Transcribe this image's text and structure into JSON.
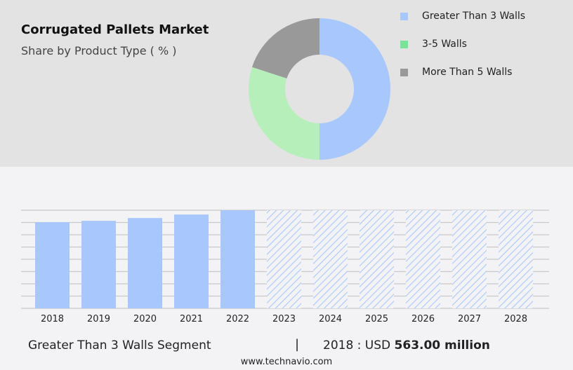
{
  "title": "Corrugated Pallets Market",
  "subtitle": "Share by Product Type ( % )",
  "footer": {
    "segment": "Greater Than 3 Walls Segment",
    "separator": "|",
    "year_label": "2018 : USD ",
    "value": "563.00 million",
    "source": "www.technavio.com"
  },
  "chart_data": [
    {
      "type": "pie",
      "style": "donut",
      "title": "Share by Product Type ( % )",
      "legend_position": "right",
      "slices": [
        {
          "name": "Greater Than 3 Walls",
          "value": 50,
          "color": "#a8c8fd"
        },
        {
          "name": "3-5 Walls",
          "value": 30,
          "color": "#b7efbb"
        },
        {
          "name": "More Than 5 Walls",
          "value": 20,
          "color": "#999999"
        }
      ],
      "legend_colors": [
        "#a8c8fd",
        "#77e499",
        "#999999"
      ]
    },
    {
      "type": "bar",
      "categories": [
        "2018",
        "2019",
        "2020",
        "2021",
        "2022",
        "2023",
        "2024",
        "2025",
        "2026",
        "2027",
        "2028"
      ],
      "values": [
        563,
        572,
        590,
        613,
        641,
        null,
        null,
        null,
        null,
        null,
        null
      ],
      "forecast_start": "2023",
      "unit": "USD million",
      "grid": true,
      "bar_color": "#a8c8fd",
      "ylim": [
        0,
        641
      ]
    }
  ]
}
